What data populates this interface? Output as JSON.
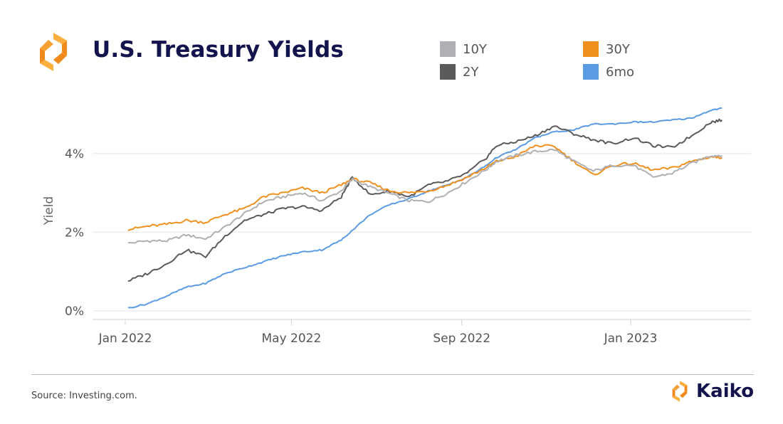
{
  "header": {
    "title": "U.S. Treasury Yields"
  },
  "legend": [
    {
      "label": "10Y",
      "color": "#aeb0b4"
    },
    {
      "label": "30Y",
      "color": "#f0901f"
    },
    {
      "label": "2Y",
      "color": "#5a5a5a"
    },
    {
      "label": "6mo",
      "color": "#5b9be3"
    }
  ],
  "footer": {
    "source": "Source: Investing.com.",
    "brand": "Kaiko"
  },
  "colors": {
    "title": "#13134d",
    "logo_orange": "#f08a1c",
    "logo_light": "#fbb040",
    "grid": "#e6e6e6"
  },
  "chart_data": {
    "type": "line",
    "title": "U.S. Treasury Yields",
    "ylabel": "Yield",
    "xlabel": "",
    "x_ticks": [
      "Jan 2022",
      "May 2022",
      "Sep 2022",
      "Jan 2023"
    ],
    "y_ticks": [
      "0%",
      "2%",
      "4%"
    ],
    "ylim": [
      0,
      5.2
    ],
    "xlim": [
      "2022-01-03",
      "2023-03-10"
    ],
    "grid": true,
    "legend_position": "top-right",
    "x": [
      "2022-01-03",
      "2022-01-17",
      "2022-01-31",
      "2022-02-14",
      "2022-02-28",
      "2022-03-14",
      "2022-03-28",
      "2022-04-11",
      "2022-04-25",
      "2022-05-09",
      "2022-05-23",
      "2022-06-06",
      "2022-06-14",
      "2022-06-27",
      "2022-07-11",
      "2022-07-25",
      "2022-08-08",
      "2022-08-22",
      "2022-09-05",
      "2022-09-19",
      "2022-09-26",
      "2022-10-10",
      "2022-10-24",
      "2022-11-07",
      "2022-11-21",
      "2022-12-05",
      "2022-12-19",
      "2023-01-03",
      "2023-01-17",
      "2023-01-31",
      "2023-02-14",
      "2023-02-28",
      "2023-03-08"
    ],
    "series": [
      {
        "name": "10Y",
        "color": "#aeb0b4",
        "values": [
          1.72,
          1.78,
          1.78,
          1.93,
          1.83,
          2.13,
          2.47,
          2.78,
          2.9,
          3.0,
          2.8,
          3.05,
          3.35,
          3.15,
          2.98,
          2.8,
          2.78,
          3.0,
          3.3,
          3.6,
          3.8,
          3.95,
          4.05,
          4.1,
          3.8,
          3.55,
          3.7,
          3.7,
          3.4,
          3.5,
          3.75,
          3.95,
          3.95
        ]
      },
      {
        "name": "30Y",
        "color": "#f0901f",
        "values": [
          2.07,
          2.15,
          2.2,
          2.3,
          2.25,
          2.45,
          2.6,
          2.9,
          3.0,
          3.12,
          3.0,
          3.2,
          3.35,
          3.25,
          3.05,
          3.0,
          3.05,
          3.2,
          3.4,
          3.65,
          3.8,
          3.92,
          4.2,
          4.18,
          3.8,
          3.45,
          3.7,
          3.75,
          3.58,
          3.63,
          3.8,
          3.92,
          3.89
        ]
      },
      {
        "name": "2Y",
        "color": "#5a5a5a",
        "values": [
          0.76,
          0.95,
          1.2,
          1.55,
          1.38,
          1.9,
          2.3,
          2.45,
          2.6,
          2.65,
          2.55,
          2.9,
          3.4,
          2.95,
          3.05,
          2.9,
          3.2,
          3.3,
          3.5,
          3.9,
          4.2,
          4.3,
          4.45,
          4.7,
          4.5,
          4.35,
          4.25,
          4.4,
          4.2,
          4.15,
          4.45,
          4.8,
          4.85
        ]
      },
      {
        "name": "6mo",
        "color": "#5b9be3",
        "values": [
          0.07,
          0.18,
          0.38,
          0.6,
          0.7,
          0.95,
          1.1,
          1.25,
          1.4,
          1.5,
          1.55,
          1.8,
          2.05,
          2.45,
          2.7,
          2.85,
          3.05,
          3.2,
          3.4,
          3.7,
          3.9,
          4.1,
          4.4,
          4.55,
          4.6,
          4.75,
          4.75,
          4.8,
          4.8,
          4.85,
          4.9,
          5.1,
          5.15
        ]
      }
    ]
  }
}
